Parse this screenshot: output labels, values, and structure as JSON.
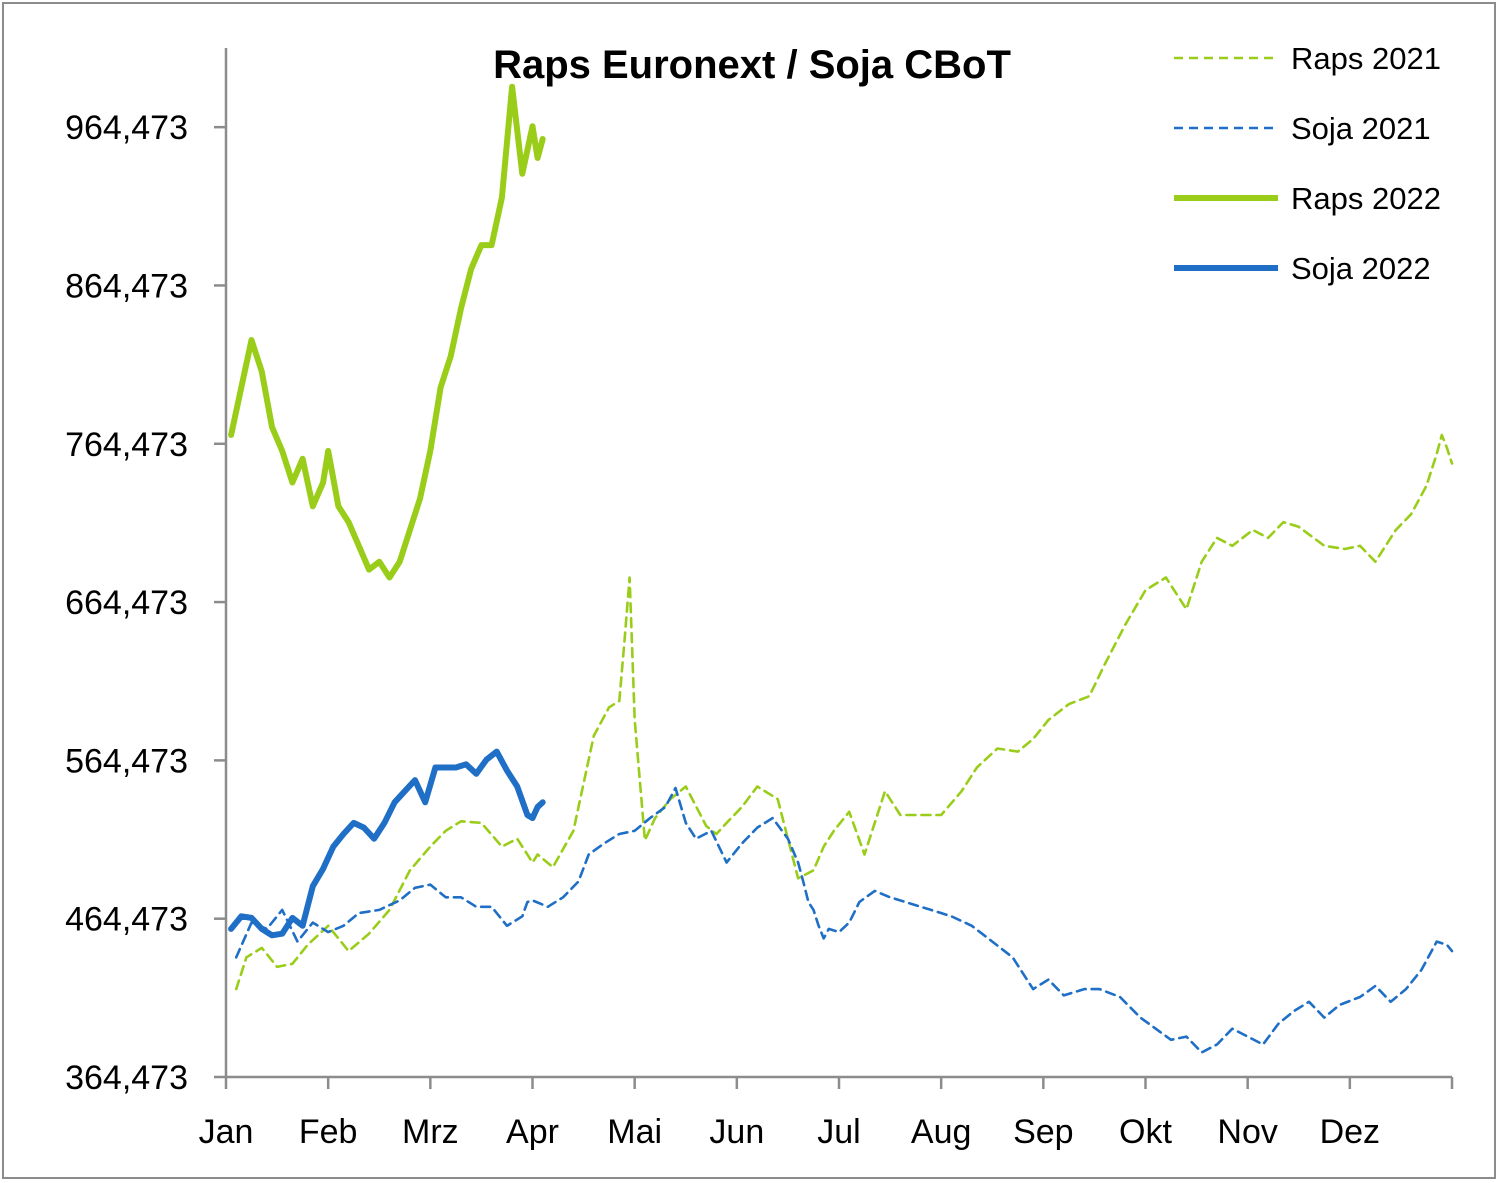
{
  "chart_data": {
    "type": "line",
    "title": "Raps Euronext / Soja CBoT",
    "xlabel": "",
    "ylabel": "",
    "x_axis": {
      "categories": [
        "Jan",
        "Feb",
        "Mrz",
        "Apr",
        "Mai",
        "Jun",
        "Jul",
        "Aug",
        "Sep",
        "Okt",
        "Nov",
        "Dez"
      ],
      "unit": "month (decimal, 0 = start of Jan, 12 = end of Dez)",
      "xlim": [
        0,
        12
      ]
    },
    "y_axis": {
      "ylim": [
        364.473,
        1014.473
      ],
      "ticks": [
        364.473,
        464.473,
        564.473,
        664.473,
        764.473,
        864.473,
        964.473
      ],
      "tick_labels": [
        "364,473",
        "464,473",
        "564,473",
        "664,473",
        "764,473",
        "864,473",
        "964,473"
      ]
    },
    "grid": false,
    "legend_position": "top-right",
    "series": [
      {
        "name": "Raps 2021",
        "color": "#9acd1a",
        "style": "dashed",
        "width": "thin",
        "x": [
          0.1,
          0.2,
          0.35,
          0.5,
          0.65,
          0.8,
          1.0,
          1.2,
          1.4,
          1.6,
          1.8,
          2.0,
          2.15,
          2.3,
          2.5,
          2.7,
          2.85,
          3.0,
          3.05,
          3.2,
          3.4,
          3.6,
          3.75,
          3.85,
          3.9,
          3.95,
          4.0,
          4.1,
          4.2,
          4.35,
          4.5,
          4.7,
          4.8,
          4.9,
          5.05,
          5.2,
          5.4,
          5.6,
          5.75,
          5.85,
          5.95,
          6.1,
          6.25,
          6.45,
          6.6,
          6.8,
          7.0,
          7.2,
          7.35,
          7.55,
          7.75,
          7.9,
          8.05,
          8.25,
          8.45,
          8.6,
          8.8,
          9.0,
          9.2,
          9.4,
          9.55,
          9.7,
          9.85,
          10.05,
          10.2,
          10.35,
          10.5,
          10.75,
          10.95,
          11.1,
          11.25,
          11.45,
          11.6,
          11.75,
          11.8,
          11.85,
          11.9,
          11.95,
          12.0
        ],
        "y": [
          420,
          440,
          446,
          434,
          436,
          448,
          460,
          444,
          455,
          470,
          495,
          510,
          520,
          526,
          525,
          510,
          515,
          500,
          505,
          497,
          520,
          580,
          598,
          602,
          640,
          680,
          590,
          514,
          528,
          540,
          548,
          523,
          518,
          525,
          535,
          548,
          540,
          490,
          495,
          510,
          520,
          532,
          505,
          545,
          530,
          530,
          530,
          545,
          560,
          572,
          570,
          578,
          590,
          600,
          605,
          625,
          650,
          672,
          680,
          660,
          690,
          705,
          700,
          710,
          705,
          715,
          712,
          700,
          698,
          700,
          690,
          710,
          720,
          738,
          748,
          758,
          770,
          762,
          752
        ]
      },
      {
        "name": "Soja 2021",
        "color": "#1f6fc6",
        "style": "dashed",
        "width": "thin",
        "x": [
          0.1,
          0.25,
          0.4,
          0.55,
          0.7,
          0.85,
          1.0,
          1.15,
          1.3,
          1.5,
          1.7,
          1.85,
          2.0,
          2.15,
          2.3,
          2.45,
          2.6,
          2.75,
          2.9,
          2.95,
          3.0,
          3.15,
          3.3,
          3.45,
          3.55,
          3.7,
          3.85,
          4.0,
          4.15,
          4.3,
          4.4,
          4.5,
          4.6,
          4.75,
          4.9,
          5.05,
          5.2,
          5.35,
          5.5,
          5.6,
          5.65,
          5.7,
          5.75,
          5.8,
          5.85,
          5.9,
          6.0,
          6.1,
          6.2,
          6.35,
          6.5,
          6.7,
          6.9,
          7.1,
          7.3,
          7.5,
          7.7,
          7.8,
          7.9,
          8.05,
          8.2,
          8.4,
          8.55,
          8.75,
          8.95,
          9.1,
          9.25,
          9.4,
          9.55,
          9.7,
          9.85,
          10.0,
          10.15,
          10.3,
          10.45,
          10.6,
          10.75,
          10.9,
          11.1,
          11.25,
          11.4,
          11.55,
          11.7,
          11.85,
          11.95,
          12.0
        ],
        "y": [
          440,
          462,
          458,
          470,
          450,
          462,
          456,
          460,
          468,
          470,
          476,
          484,
          486,
          478,
          478,
          472,
          472,
          460,
          466,
          475,
          476,
          472,
          478,
          488,
          505,
          512,
          518,
          520,
          528,
          535,
          547,
          525,
          515,
          520,
          500,
          512,
          522,
          528,
          515,
          500,
          488,
          475,
          470,
          460,
          452,
          458,
          456,
          462,
          475,
          482,
          478,
          474,
          470,
          466,
          460,
          450,
          440,
          430,
          420,
          426,
          416,
          420,
          420,
          415,
          402,
          395,
          388,
          390,
          380,
          385,
          395,
          390,
          385,
          398,
          406,
          412,
          402,
          410,
          415,
          422,
          412,
          420,
          432,
          450,
          448,
          444
        ]
      },
      {
        "name": "Raps 2022",
        "color": "#9acd1a",
        "style": "solid",
        "width": "thick",
        "x": [
          0.05,
          0.15,
          0.25,
          0.35,
          0.45,
          0.55,
          0.65,
          0.75,
          0.85,
          0.95,
          1.0,
          1.1,
          1.2,
          1.3,
          1.4,
          1.5,
          1.6,
          1.7,
          1.8,
          1.9,
          2.0,
          2.1,
          2.2,
          2.3,
          2.4,
          2.5,
          2.6,
          2.7,
          2.8,
          2.9,
          3.0,
          3.05,
          3.1
        ],
        "y": [
          770,
          800,
          830,
          810,
          775,
          760,
          740,
          755,
          725,
          740,
          760,
          725,
          715,
          700,
          685,
          690,
          680,
          690,
          710,
          730,
          760,
          800,
          820,
          850,
          875,
          890,
          890,
          920,
          990,
          935,
          965,
          945,
          957
        ]
      },
      {
        "name": "Soja 2022",
        "color": "#1f6fc6",
        "style": "solid",
        "width": "thick",
        "x": [
          0.05,
          0.15,
          0.25,
          0.35,
          0.45,
          0.55,
          0.65,
          0.75,
          0.85,
          0.95,
          1.05,
          1.15,
          1.25,
          1.35,
          1.45,
          1.55,
          1.65,
          1.75,
          1.85,
          1.95,
          2.05,
          2.15,
          2.25,
          2.35,
          2.45,
          2.55,
          2.65,
          2.75,
          2.85,
          2.95,
          3.0,
          3.05,
          3.1
        ],
        "y": [
          458,
          466,
          465,
          458,
          454,
          455,
          465,
          460,
          485,
          496,
          510,
          518,
          525,
          522,
          515,
          525,
          538,
          545,
          552,
          538,
          560,
          560,
          560,
          562,
          556,
          565,
          570,
          558,
          548,
          530,
          528,
          535,
          538
        ]
      }
    ]
  }
}
